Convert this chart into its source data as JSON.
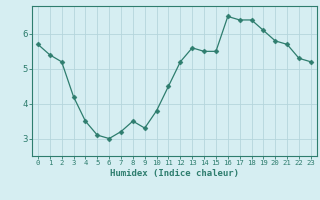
{
  "x": [
    0,
    1,
    2,
    3,
    4,
    5,
    6,
    7,
    8,
    9,
    10,
    11,
    12,
    13,
    14,
    15,
    16,
    17,
    18,
    19,
    20,
    21,
    22,
    23
  ],
  "y": [
    5.7,
    5.4,
    5.2,
    4.2,
    3.5,
    3.1,
    3.0,
    3.2,
    3.5,
    3.3,
    3.8,
    4.5,
    5.2,
    5.6,
    5.5,
    5.5,
    6.5,
    6.4,
    6.4,
    6.1,
    5.8,
    5.7,
    5.3,
    5.2
  ],
  "xlabel": "Humidex (Indice chaleur)",
  "ylim": [
    2.5,
    6.8
  ],
  "xlim": [
    -0.5,
    23.5
  ],
  "yticks": [
    3,
    4,
    5,
    6
  ],
  "xticks": [
    0,
    1,
    2,
    3,
    4,
    5,
    6,
    7,
    8,
    9,
    10,
    11,
    12,
    13,
    14,
    15,
    16,
    17,
    18,
    19,
    20,
    21,
    22,
    23
  ],
  "line_color": "#2e7d6e",
  "marker_color": "#2e7d6e",
  "bg_color": "#d6eef2",
  "grid_color": "#b5d5dc",
  "axis_color": "#2e7d6e",
  "tick_label_color": "#2e7d6e",
  "xlabel_fontsize": 6.5,
  "ytick_fontsize": 6.5,
  "xtick_fontsize": 5.2
}
